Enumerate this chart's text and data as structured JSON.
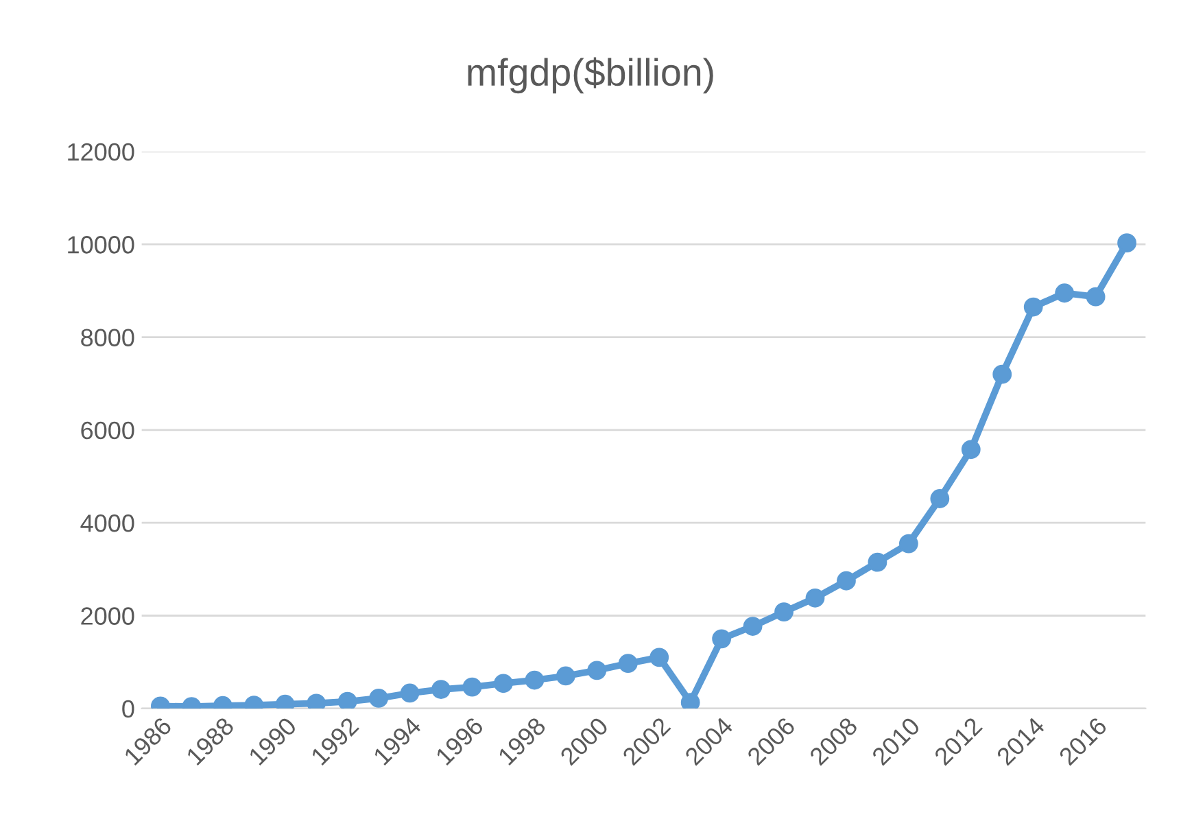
{
  "chart_data": {
    "type": "line",
    "title": "mfgdp($billion)",
    "categories": [
      "1986",
      null,
      "1988",
      null,
      "1990",
      null,
      "1992",
      null,
      "1994",
      null,
      "1996",
      null,
      "1998",
      null,
      "2000",
      null,
      "2002",
      null,
      "2004",
      null,
      "2006",
      null,
      "2008",
      null,
      "2010",
      null,
      "2012",
      null,
      "2014",
      null,
      "2016",
      null
    ],
    "series": [
      {
        "color": "#5b9bd5",
        "values": [
          50,
          40,
          60,
          70,
          90,
          110,
          150,
          220,
          330,
          410,
          460,
          540,
          610,
          700,
          820,
          970,
          1100,
          130,
          1500,
          1770,
          2080,
          2380,
          2750,
          3150,
          3550,
          4520,
          5580,
          7200,
          8650,
          8950,
          8870,
          10030
        ]
      }
    ],
    "ylim": [
      0,
      12000
    ],
    "yticks": [
      0,
      2000,
      4000,
      6000,
      8000,
      10000,
      12000
    ],
    "grid": "y",
    "marker": "circle",
    "line_style": "solid",
    "legend": false
  }
}
